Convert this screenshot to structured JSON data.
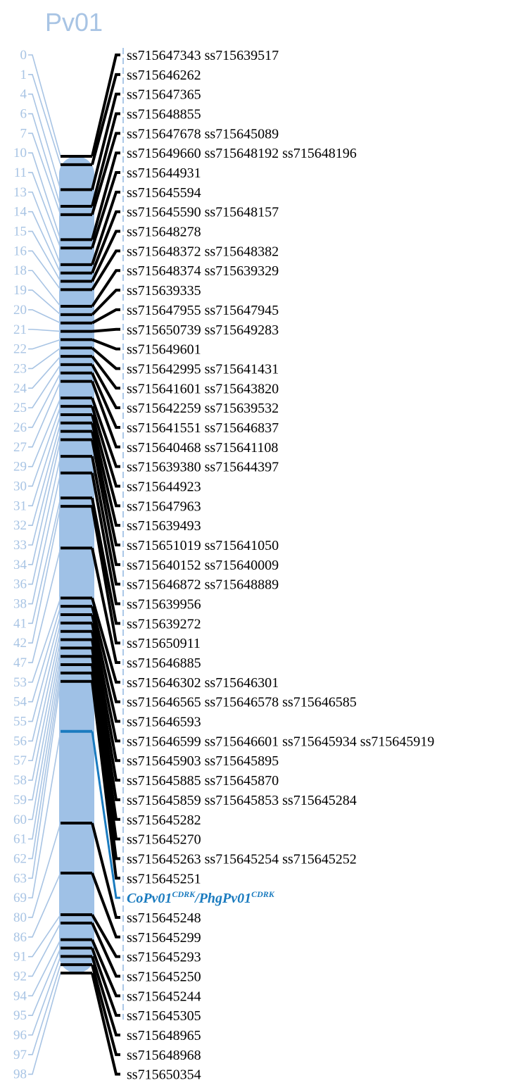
{
  "linkage_group": "Pv01",
  "colors": {
    "chromosome": "#9fc1e6",
    "position_text": "#a8c4e4",
    "marker_line": "#000000",
    "highlight": "#1a7bbf"
  },
  "loci": [
    {
      "pos": "0",
      "markers": "ss715647343 ss715639517"
    },
    {
      "pos": "1",
      "markers": "ss715646262"
    },
    {
      "pos": "4",
      "markers": "ss715647365"
    },
    {
      "pos": "6",
      "markers": "ss715648855"
    },
    {
      "pos": "7",
      "markers": "ss715647678 ss715645089"
    },
    {
      "pos": "10",
      "markers": "ss715649660 ss715648192 ss715648196"
    },
    {
      "pos": "11",
      "markers": "ss715644931"
    },
    {
      "pos": "13",
      "markers": "ss715645594"
    },
    {
      "pos": "14",
      "markers": "ss715645590 ss715648157"
    },
    {
      "pos": "15",
      "markers": "ss715648278"
    },
    {
      "pos": "16",
      "markers": "ss715648372 ss715648382"
    },
    {
      "pos": "18",
      "markers": "ss715648374 ss715639329"
    },
    {
      "pos": "19",
      "markers": "ss715639335"
    },
    {
      "pos": "20",
      "markers": "ss715647955 ss715647945"
    },
    {
      "pos": "21",
      "markers": "ss715650739 ss715649283"
    },
    {
      "pos": "22",
      "markers": "ss715649601"
    },
    {
      "pos": "23",
      "markers": "ss715642995 ss715641431"
    },
    {
      "pos": "24",
      "markers": "ss715641601 ss715643820"
    },
    {
      "pos": "25",
      "markers": "ss715642259 ss715639532"
    },
    {
      "pos": "26",
      "markers": "ss715641551 ss715646837"
    },
    {
      "pos": "27",
      "markers": "ss715640468 ss715641108"
    },
    {
      "pos": "29",
      "markers": "ss715639380 ss715644397"
    },
    {
      "pos": "30",
      "markers": "ss715644923"
    },
    {
      "pos": "31",
      "markers": "ss715647963"
    },
    {
      "pos": "32",
      "markers": "ss715639493"
    },
    {
      "pos": "33",
      "markers": "ss715651019 ss715641050"
    },
    {
      "pos": "34",
      "markers": "ss715640152 ss715640009"
    },
    {
      "pos": "36",
      "markers": "ss715646872 ss715648889"
    },
    {
      "pos": "38",
      "markers": "ss715639956"
    },
    {
      "pos": "41",
      "markers": "ss715639272"
    },
    {
      "pos": "42",
      "markers": "ss715650911"
    },
    {
      "pos": "47",
      "markers": "ss715646885"
    },
    {
      "pos": "53",
      "markers": "ss715646302 ss715646301"
    },
    {
      "pos": "54",
      "markers": "ss715646565 ss715646578 ss715646585"
    },
    {
      "pos": "55",
      "markers": "ss715646593"
    },
    {
      "pos": "56",
      "markers": "ss715646599 ss715646601 ss715645934 ss715645919"
    },
    {
      "pos": "57",
      "markers": "ss715645903 ss715645895"
    },
    {
      "pos": "58",
      "markers": "ss715645885 ss715645870"
    },
    {
      "pos": "59",
      "markers": "ss715645859 ss715645853 ss715645284"
    },
    {
      "pos": "60",
      "markers": "ss715645282"
    },
    {
      "pos": "61",
      "markers": "ss715645270"
    },
    {
      "pos": "62",
      "markers": "ss715645263 ss715645254 ss715645252"
    },
    {
      "pos": "63",
      "markers": "ss715645251"
    },
    {
      "pos": "69",
      "markers": "",
      "highlight": {
        "part1": "CoPv01",
        "sup1": "CDRK",
        "part2": "/PhgPv01",
        "sup2": "CDRK"
      }
    },
    {
      "pos": "80",
      "markers": "ss715645248"
    },
    {
      "pos": "86",
      "markers": "ss715645299"
    },
    {
      "pos": "91",
      "markers": "ss715645293"
    },
    {
      "pos": "92",
      "markers": "ss715645250"
    },
    {
      "pos": "94",
      "markers": "ss715645244"
    },
    {
      "pos": "95",
      "markers": "ss715645305"
    },
    {
      "pos": "96",
      "markers": "ss715648965"
    },
    {
      "pos": "97",
      "markers": "ss715648968"
    },
    {
      "pos": "98",
      "markers": "ss715650354"
    }
  ]
}
